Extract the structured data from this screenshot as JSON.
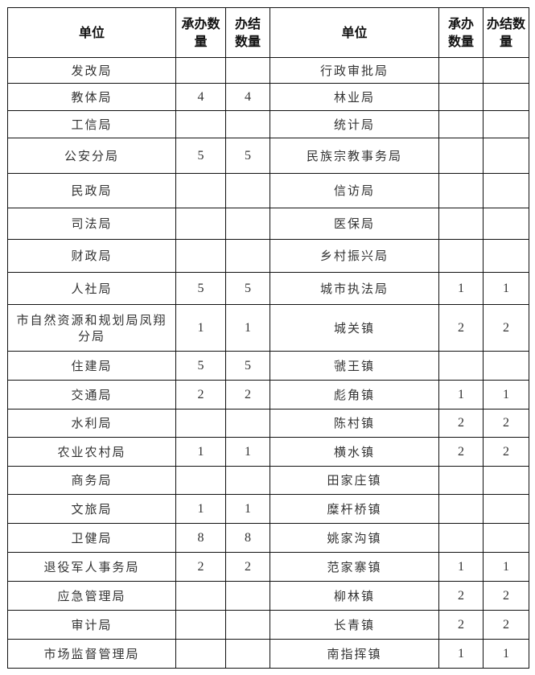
{
  "header": {
    "unit": "单位",
    "handled": "承办数量",
    "completed": "办结数量"
  },
  "rows": [
    {
      "left": {
        "unit": "发改局",
        "handled": "",
        "completed": ""
      },
      "right": {
        "unit": "行政审批局",
        "handled": "",
        "completed": ""
      }
    },
    {
      "left": {
        "unit": "教体局",
        "handled": "4",
        "completed": "4"
      },
      "right": {
        "unit": "林业局",
        "handled": "",
        "completed": ""
      }
    },
    {
      "left": {
        "unit": "工信局",
        "handled": "",
        "completed": ""
      },
      "right": {
        "unit": "统计局",
        "handled": "",
        "completed": ""
      }
    },
    {
      "left": {
        "unit": "公安分局",
        "handled": "5",
        "completed": "5"
      },
      "right": {
        "unit": "民族宗教事务局",
        "handled": "",
        "completed": ""
      }
    },
    {
      "left": {
        "unit": "民政局",
        "handled": "",
        "completed": ""
      },
      "right": {
        "unit": "信访局",
        "handled": "",
        "completed": ""
      }
    },
    {
      "left": {
        "unit": "司法局",
        "handled": "",
        "completed": ""
      },
      "right": {
        "unit": "医保局",
        "handled": "",
        "completed": ""
      }
    },
    {
      "left": {
        "unit": "财政局",
        "handled": "",
        "completed": ""
      },
      "right": {
        "unit": "乡村振兴局",
        "handled": "",
        "completed": ""
      }
    },
    {
      "left": {
        "unit": "人社局",
        "handled": "5",
        "completed": "5"
      },
      "right": {
        "unit": "城市执法局",
        "handled": "1",
        "completed": "1"
      }
    },
    {
      "left": {
        "unit": "市自然资源和规划局凤翔分局",
        "handled": "1",
        "completed": "1"
      },
      "right": {
        "unit": "城关镇",
        "handled": "2",
        "completed": "2"
      }
    },
    {
      "left": {
        "unit": "住建局",
        "handled": "5",
        "completed": "5"
      },
      "right": {
        "unit": "虢王镇",
        "handled": "",
        "completed": ""
      }
    },
    {
      "left": {
        "unit": "交通局",
        "handled": "2",
        "completed": "2"
      },
      "right": {
        "unit": "彪角镇",
        "handled": "1",
        "completed": "1"
      }
    },
    {
      "left": {
        "unit": "水利局",
        "handled": "",
        "completed": ""
      },
      "right": {
        "unit": "陈村镇",
        "handled": "2",
        "completed": "2"
      }
    },
    {
      "left": {
        "unit": "农业农村局",
        "handled": "1",
        "completed": "1"
      },
      "right": {
        "unit": "横水镇",
        "handled": "2",
        "completed": "2"
      }
    },
    {
      "left": {
        "unit": "商务局",
        "handled": "",
        "completed": ""
      },
      "right": {
        "unit": "田家庄镇",
        "handled": "",
        "completed": ""
      }
    },
    {
      "left": {
        "unit": "文旅局",
        "handled": "1",
        "completed": "1"
      },
      "right": {
        "unit": "糜杆桥镇",
        "handled": "",
        "completed": ""
      }
    },
    {
      "left": {
        "unit": "卫健局",
        "handled": "8",
        "completed": "8"
      },
      "right": {
        "unit": "姚家沟镇",
        "handled": "",
        "completed": ""
      }
    },
    {
      "left": {
        "unit": "退役军人事务局",
        "handled": "2",
        "completed": "2"
      },
      "right": {
        "unit": "范家寨镇",
        "handled": "1",
        "completed": "1"
      }
    },
    {
      "left": {
        "unit": "应急管理局",
        "handled": "",
        "completed": ""
      },
      "right": {
        "unit": "柳林镇",
        "handled": "2",
        "completed": "2"
      }
    },
    {
      "left": {
        "unit": "审计局",
        "handled": "",
        "completed": ""
      },
      "right": {
        "unit": "长青镇",
        "handled": "2",
        "completed": "2"
      }
    },
    {
      "left": {
        "unit": "市场监督管理局",
        "handled": "",
        "completed": ""
      },
      "right": {
        "unit": "南指挥镇",
        "handled": "1",
        "completed": "1"
      }
    }
  ]
}
